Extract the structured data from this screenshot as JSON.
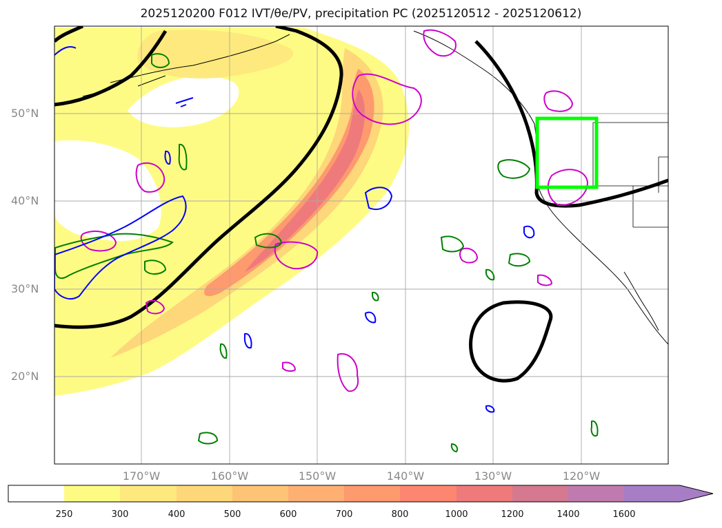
{
  "title": "2025120200 F012 IVT/θe/PV, precipitation PC (2025120512 - 2025120612)",
  "lat_labels": [
    "50°N",
    "40°N",
    "30°N",
    "20°N"
  ],
  "lon_labels": [
    "170°W",
    "160°W",
    "150°W",
    "140°W",
    "130°W",
    "120°W"
  ],
  "colorbar": {
    "labels": [
      "250",
      "300",
      "400",
      "500",
      "600",
      "700",
      "800",
      "1000",
      "1200",
      "1400",
      "1600"
    ],
    "colors": [
      "#ffffff",
      "#fefb84",
      "#fde97e",
      "#fdd77a",
      "#fdc476",
      "#fdb072",
      "#fd9a6e",
      "#fd8671",
      "#ef7a7c",
      "#d4798f",
      "#bf7bb0",
      "#a77ec6"
    ]
  },
  "colors": {
    "pv_contour": "#cc00cc",
    "theta_contour_green": "#008000",
    "theta_contour_blue": "#0000ff",
    "box": "#00ff00",
    "ivt_line": "#000000"
  }
}
